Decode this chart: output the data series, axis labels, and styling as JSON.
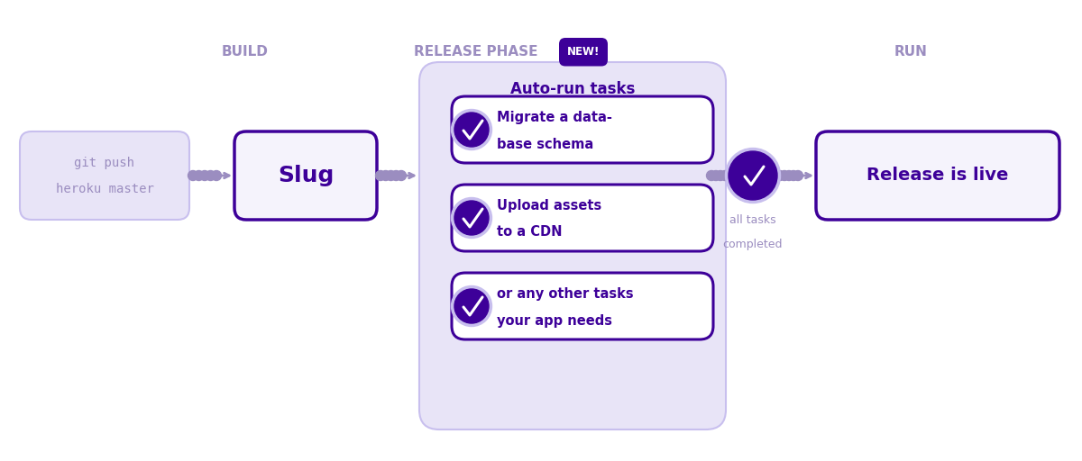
{
  "bg_color": "#ffffff",
  "purple_dark": "#3d0099",
  "purple_mid": "#6b4fbb",
  "purple_light": "#c8bfee",
  "purple_pale": "#e8e4f7",
  "purple_very_pale": "#f0eefa",
  "purple_label": "#9b8dc0",
  "new_badge_bg": "#3d0099",
  "new_badge_text": "#ffffff",
  "git_box_bg": "#e8e4f7",
  "git_box_border": "#c8bfee",
  "git_text": "#9b8dc0",
  "slug_box_bg": "#f5f3fc",
  "slug_box_border": "#3d0099",
  "slug_text": "#3d0099",
  "release_panel_bg": "#e8e4f7",
  "release_panel_border": "#c8bfee",
  "task_box_bg": "#ffffff",
  "task_box_border": "#3d0099",
  "task_text": "#3d0099",
  "check_circle_bg": "#3d0099",
  "check_color": "#ffffff",
  "run_box_bg": "#f5f3fc",
  "run_box_border": "#3d0099",
  "run_text": "#3d0099",
  "header_text_color": "#9b8dc0",
  "dot_color": "#9b8dc0",
  "completed_text_color": "#9b8dc0",
  "title_build": "BUILD",
  "title_release": "RELEASE PHASE",
  "title_new": "NEW!",
  "title_run": "RUN",
  "git_line1": "git push",
  "git_line2": "heroku master",
  "slug_label": "Slug",
  "auto_run_label": "Auto-run tasks",
  "task1_line1": "Migrate a data-",
  "task1_line2": "base schema",
  "task2_line1": "Upload assets",
  "task2_line2": "to a CDN",
  "task3_line1": "or any other tasks",
  "task3_line2": "your app needs",
  "run_label": "Release is live",
  "all_tasks_line1": "all tasks",
  "all_tasks_line2": "completed"
}
